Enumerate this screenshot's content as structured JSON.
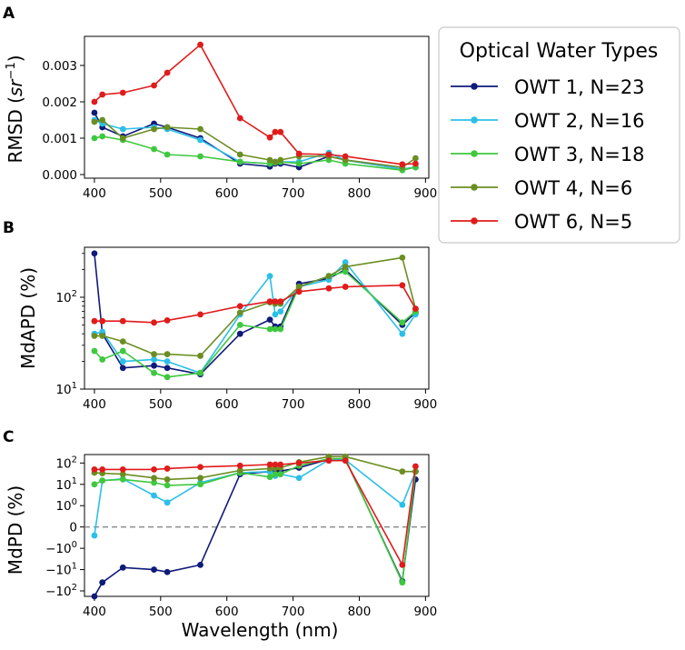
{
  "figure": {
    "x_label": "Wavelength (nm)",
    "legend_title": "Optical Water Types"
  },
  "series_styles": [
    {
      "name": "OWT 1, N=23",
      "color": "#0f1a7a"
    },
    {
      "name": "OWT 2, N=16",
      "color": "#2bbfe8"
    },
    {
      "name": "OWT 3, N=18",
      "color": "#3ec83e"
    },
    {
      "name": "OWT 4, N=6",
      "color": "#6b8e23"
    },
    {
      "name": "OWT 6, N=5",
      "color": "#e01b1b"
    }
  ],
  "chart_data": [
    {
      "panel": "A",
      "type": "line",
      "ylabel_main": "RMSD (",
      "ylabel_unit": "sr",
      "ylabel_exp": "−1",
      "ylabel_close": ")",
      "yscale": "linear",
      "xlim": [
        385,
        905
      ],
      "ylim": [
        -0.0001,
        0.0038
      ],
      "xticks": [
        400,
        500,
        600,
        700,
        800,
        900
      ],
      "yticks": [
        {
          "v": 0.0,
          "label": "0.000"
        },
        {
          "v": 0.001,
          "label": "0.001"
        },
        {
          "v": 0.002,
          "label": "0.002"
        },
        {
          "v": 0.003,
          "label": "0.003"
        }
      ],
      "x": [
        400,
        412,
        443,
        490,
        510,
        560,
        620,
        665,
        673,
        681,
        709,
        754,
        779,
        865,
        885
      ],
      "series": [
        {
          "name": "OWT 1, N=23",
          "values": [
            0.0017,
            0.0013,
            0.00105,
            0.0014,
            0.0013,
            0.001,
            0.0003,
            0.00022,
            0.0003,
            0.0003,
            0.0002,
            0.0005,
            0.0004,
            0.00015,
            0.0002
          ]
        },
        {
          "name": "OWT 2, N=16",
          "values": [
            0.0015,
            0.0014,
            0.00125,
            0.0013,
            0.00125,
            0.00095,
            0.00035,
            0.0003,
            0.00035,
            0.00035,
            0.00035,
            0.0006,
            0.0004,
            0.00015,
            0.0002
          ]
        },
        {
          "name": "OWT 3, N=18",
          "values": [
            0.001,
            0.00105,
            0.00095,
            0.0007,
            0.00055,
            0.0005,
            0.00035,
            0.0003,
            0.00033,
            0.00035,
            0.0003,
            0.0004,
            0.0003,
            0.00012,
            0.0002
          ]
        },
        {
          "name": "OWT 4, N=6",
          "values": [
            0.00145,
            0.0015,
            0.001,
            0.00125,
            0.0013,
            0.00125,
            0.00055,
            0.0004,
            0.00035,
            0.0004,
            0.0005,
            0.0005,
            0.0004,
            0.0002,
            0.00045
          ]
        },
        {
          "name": "OWT 6, N=5",
          "values": [
            0.002,
            0.0022,
            0.00225,
            0.00245,
            0.0028,
            0.00357,
            0.00155,
            0.00102,
            0.00117,
            0.00117,
            0.00057,
            0.00055,
            0.0005,
            0.00028,
            0.0003
          ]
        }
      ]
    },
    {
      "panel": "B",
      "type": "line",
      "ylabel": "MdAPD (%)",
      "yscale": "log",
      "xlim": [
        385,
        905
      ],
      "ylim": [
        10,
        350
      ],
      "xticks": [
        400,
        500,
        600,
        700,
        800,
        900
      ],
      "yticks": [
        {
          "v": 10,
          "base": "10",
          "exp": "1"
        },
        {
          "v": 100,
          "base": "10",
          "exp": "2"
        }
      ],
      "x": [
        400,
        412,
        443,
        490,
        510,
        560,
        620,
        665,
        673,
        681,
        709,
        754,
        779,
        865,
        885
      ],
      "series": [
        {
          "name": "OWT 1, N=23",
          "values": [
            300,
            40,
            17,
            18,
            17,
            14.5,
            40,
            57,
            48,
            48,
            140,
            160,
            200,
            50,
            68
          ]
        },
        {
          "name": "OWT 2, N=16",
          "values": [
            40,
            42,
            20,
            21,
            20,
            15,
            65,
            170,
            65,
            70,
            130,
            155,
            240,
            40,
            65
          ]
        },
        {
          "name": "OWT 3, N=18",
          "values": [
            26,
            21,
            26,
            15,
            13.5,
            15,
            50,
            45,
            45,
            45,
            130,
            170,
            190,
            53,
            70
          ]
        },
        {
          "name": "OWT 4, N=6",
          "values": [
            38,
            38,
            33,
            24,
            24,
            23,
            68,
            88,
            85,
            85,
            130,
            170,
            215,
            270,
            75
          ]
        },
        {
          "name": "OWT 6, N=5",
          "values": [
            55,
            55,
            55,
            53,
            56,
            65,
            80,
            90,
            90,
            90,
            115,
            125,
            130,
            135,
            75
          ]
        }
      ]
    },
    {
      "panel": "C",
      "type": "line",
      "ylabel": "MdPD (%)",
      "yscale": "symlog",
      "xlim": [
        385,
        905
      ],
      "ylim": [
        -180,
        250
      ],
      "reference_line": 0,
      "xticks": [
        400,
        500,
        600,
        700,
        800,
        900
      ],
      "yticks": [
        {
          "v": 100,
          "base": "10",
          "exp": "2"
        },
        {
          "v": 10,
          "base": "10",
          "exp": "1"
        },
        {
          "v": 1,
          "base": "10",
          "exp": "0"
        },
        {
          "v": 0,
          "base": "0",
          "exp": ""
        },
        {
          "v": -1,
          "base": "−10",
          "exp": "0"
        },
        {
          "v": -10,
          "base": "−10",
          "exp": "1"
        },
        {
          "v": -100,
          "base": "−10",
          "exp": "2"
        }
      ],
      "x": [
        400,
        412,
        443,
        490,
        510,
        560,
        620,
        665,
        673,
        681,
        709,
        754,
        779,
        865,
        885
      ],
      "series": [
        {
          "name": "OWT 1, N=23",
          "values": [
            -180,
            -40,
            -8,
            -10,
            -13,
            -6,
            30,
            40,
            40,
            42,
            60,
            150,
            150,
            -35,
            17
          ]
        },
        {
          "name": "OWT 2, N=16",
          "values": [
            -0.4,
            15,
            18,
            3,
            1.4,
            12,
            35,
            40,
            25,
            30,
            20,
            140,
            140,
            1.1,
            40
          ]
        },
        {
          "name": "OWT 3, N=18",
          "values": [
            10,
            15,
            17,
            12,
            9,
            10,
            35,
            22,
            30,
            30,
            75,
            160,
            160,
            -40,
            40
          ]
        },
        {
          "name": "OWT 4, N=6",
          "values": [
            35,
            33,
            30,
            20,
            17,
            20,
            45,
            55,
            58,
            60,
            110,
            200,
            200,
            40,
            40
          ]
        },
        {
          "name": "OWT 6, N=5",
          "values": [
            50,
            50,
            50,
            50,
            55,
            65,
            75,
            85,
            85,
            85,
            100,
            130,
            130,
            -6,
            70
          ]
        }
      ]
    }
  ]
}
